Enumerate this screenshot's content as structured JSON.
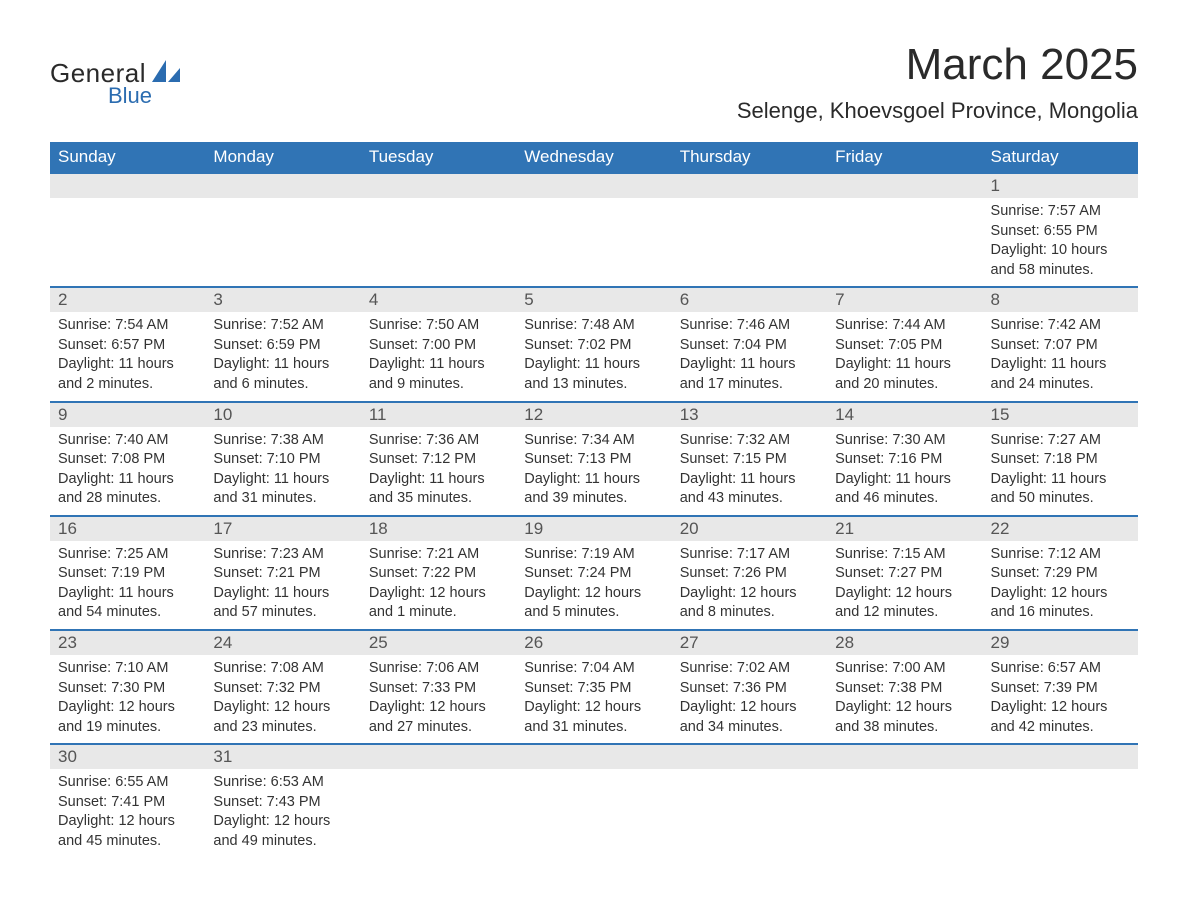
{
  "brand": {
    "word1": "General",
    "word2": "Blue",
    "accent": "#2b6cb0"
  },
  "title": "March 2025",
  "location": "Selenge, Khoevsgoel Province, Mongolia",
  "colors": {
    "header_bg": "#3074b5",
    "header_text": "#ffffff",
    "daynum_bg": "#e8e8e8",
    "row_border": "#3074b5",
    "body_text": "#333333",
    "page_bg": "#ffffff"
  },
  "typography": {
    "title_fontsize": 44,
    "location_fontsize": 22,
    "weekday_fontsize": 17,
    "daynum_fontsize": 17,
    "cell_fontsize": 14.5
  },
  "table": {
    "columns": [
      "Sunday",
      "Monday",
      "Tuesday",
      "Wednesday",
      "Thursday",
      "Friday",
      "Saturday"
    ],
    "weeks": [
      [
        null,
        null,
        null,
        null,
        null,
        null,
        {
          "d": "1",
          "sr": "Sunrise: 7:57 AM",
          "ss": "Sunset: 6:55 PM",
          "dl1": "Daylight: 10 hours",
          "dl2": "and 58 minutes."
        }
      ],
      [
        {
          "d": "2",
          "sr": "Sunrise: 7:54 AM",
          "ss": "Sunset: 6:57 PM",
          "dl1": "Daylight: 11 hours",
          "dl2": "and 2 minutes."
        },
        {
          "d": "3",
          "sr": "Sunrise: 7:52 AM",
          "ss": "Sunset: 6:59 PM",
          "dl1": "Daylight: 11 hours",
          "dl2": "and 6 minutes."
        },
        {
          "d": "4",
          "sr": "Sunrise: 7:50 AM",
          "ss": "Sunset: 7:00 PM",
          "dl1": "Daylight: 11 hours",
          "dl2": "and 9 minutes."
        },
        {
          "d": "5",
          "sr": "Sunrise: 7:48 AM",
          "ss": "Sunset: 7:02 PM",
          "dl1": "Daylight: 11 hours",
          "dl2": "and 13 minutes."
        },
        {
          "d": "6",
          "sr": "Sunrise: 7:46 AM",
          "ss": "Sunset: 7:04 PM",
          "dl1": "Daylight: 11 hours",
          "dl2": "and 17 minutes."
        },
        {
          "d": "7",
          "sr": "Sunrise: 7:44 AM",
          "ss": "Sunset: 7:05 PM",
          "dl1": "Daylight: 11 hours",
          "dl2": "and 20 minutes."
        },
        {
          "d": "8",
          "sr": "Sunrise: 7:42 AM",
          "ss": "Sunset: 7:07 PM",
          "dl1": "Daylight: 11 hours",
          "dl2": "and 24 minutes."
        }
      ],
      [
        {
          "d": "9",
          "sr": "Sunrise: 7:40 AM",
          "ss": "Sunset: 7:08 PM",
          "dl1": "Daylight: 11 hours",
          "dl2": "and 28 minutes."
        },
        {
          "d": "10",
          "sr": "Sunrise: 7:38 AM",
          "ss": "Sunset: 7:10 PM",
          "dl1": "Daylight: 11 hours",
          "dl2": "and 31 minutes."
        },
        {
          "d": "11",
          "sr": "Sunrise: 7:36 AM",
          "ss": "Sunset: 7:12 PM",
          "dl1": "Daylight: 11 hours",
          "dl2": "and 35 minutes."
        },
        {
          "d": "12",
          "sr": "Sunrise: 7:34 AM",
          "ss": "Sunset: 7:13 PM",
          "dl1": "Daylight: 11 hours",
          "dl2": "and 39 minutes."
        },
        {
          "d": "13",
          "sr": "Sunrise: 7:32 AM",
          "ss": "Sunset: 7:15 PM",
          "dl1": "Daylight: 11 hours",
          "dl2": "and 43 minutes."
        },
        {
          "d": "14",
          "sr": "Sunrise: 7:30 AM",
          "ss": "Sunset: 7:16 PM",
          "dl1": "Daylight: 11 hours",
          "dl2": "and 46 minutes."
        },
        {
          "d": "15",
          "sr": "Sunrise: 7:27 AM",
          "ss": "Sunset: 7:18 PM",
          "dl1": "Daylight: 11 hours",
          "dl2": "and 50 minutes."
        }
      ],
      [
        {
          "d": "16",
          "sr": "Sunrise: 7:25 AM",
          "ss": "Sunset: 7:19 PM",
          "dl1": "Daylight: 11 hours",
          "dl2": "and 54 minutes."
        },
        {
          "d": "17",
          "sr": "Sunrise: 7:23 AM",
          "ss": "Sunset: 7:21 PM",
          "dl1": "Daylight: 11 hours",
          "dl2": "and 57 minutes."
        },
        {
          "d": "18",
          "sr": "Sunrise: 7:21 AM",
          "ss": "Sunset: 7:22 PM",
          "dl1": "Daylight: 12 hours",
          "dl2": "and 1 minute."
        },
        {
          "d": "19",
          "sr": "Sunrise: 7:19 AM",
          "ss": "Sunset: 7:24 PM",
          "dl1": "Daylight: 12 hours",
          "dl2": "and 5 minutes."
        },
        {
          "d": "20",
          "sr": "Sunrise: 7:17 AM",
          "ss": "Sunset: 7:26 PM",
          "dl1": "Daylight: 12 hours",
          "dl2": "and 8 minutes."
        },
        {
          "d": "21",
          "sr": "Sunrise: 7:15 AM",
          "ss": "Sunset: 7:27 PM",
          "dl1": "Daylight: 12 hours",
          "dl2": "and 12 minutes."
        },
        {
          "d": "22",
          "sr": "Sunrise: 7:12 AM",
          "ss": "Sunset: 7:29 PM",
          "dl1": "Daylight: 12 hours",
          "dl2": "and 16 minutes."
        }
      ],
      [
        {
          "d": "23",
          "sr": "Sunrise: 7:10 AM",
          "ss": "Sunset: 7:30 PM",
          "dl1": "Daylight: 12 hours",
          "dl2": "and 19 minutes."
        },
        {
          "d": "24",
          "sr": "Sunrise: 7:08 AM",
          "ss": "Sunset: 7:32 PM",
          "dl1": "Daylight: 12 hours",
          "dl2": "and 23 minutes."
        },
        {
          "d": "25",
          "sr": "Sunrise: 7:06 AM",
          "ss": "Sunset: 7:33 PM",
          "dl1": "Daylight: 12 hours",
          "dl2": "and 27 minutes."
        },
        {
          "d": "26",
          "sr": "Sunrise: 7:04 AM",
          "ss": "Sunset: 7:35 PM",
          "dl1": "Daylight: 12 hours",
          "dl2": "and 31 minutes."
        },
        {
          "d": "27",
          "sr": "Sunrise: 7:02 AM",
          "ss": "Sunset: 7:36 PM",
          "dl1": "Daylight: 12 hours",
          "dl2": "and 34 minutes."
        },
        {
          "d": "28",
          "sr": "Sunrise: 7:00 AM",
          "ss": "Sunset: 7:38 PM",
          "dl1": "Daylight: 12 hours",
          "dl2": "and 38 minutes."
        },
        {
          "d": "29",
          "sr": "Sunrise: 6:57 AM",
          "ss": "Sunset: 7:39 PM",
          "dl1": "Daylight: 12 hours",
          "dl2": "and 42 minutes."
        }
      ],
      [
        {
          "d": "30",
          "sr": "Sunrise: 6:55 AM",
          "ss": "Sunset: 7:41 PM",
          "dl1": "Daylight: 12 hours",
          "dl2": "and 45 minutes."
        },
        {
          "d": "31",
          "sr": "Sunrise: 6:53 AM",
          "ss": "Sunset: 7:43 PM",
          "dl1": "Daylight: 12 hours",
          "dl2": "and 49 minutes."
        },
        null,
        null,
        null,
        null,
        null
      ]
    ]
  }
}
